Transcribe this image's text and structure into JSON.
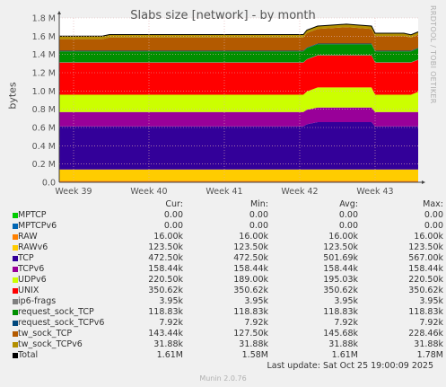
{
  "title": "Slabs size [network] - by month",
  "side_label": "RRDTOOL / TOBI OETIKER",
  "footer": "Munin 2.0.76",
  "last_update": "Last update: Sat Oct 25 19:00:09 2025",
  "legend_headers": {
    "cur": "Cur:",
    "min": "Min:",
    "avg": "Avg:",
    "max": "Max:"
  },
  "legend": [
    {
      "name": "MPTCP",
      "color": "#00cc00",
      "cur": "0.00",
      "min": "0.00",
      "avg": "0.00",
      "max": "0.00"
    },
    {
      "name": "MPTCPv6",
      "color": "#0066b3",
      "cur": "0.00",
      "min": "0.00",
      "avg": "0.00",
      "max": "0.00"
    },
    {
      "name": "RAW",
      "color": "#ff8000",
      "cur": "16.00k",
      "min": "16.00k",
      "avg": "16.00k",
      "max": "16.00k"
    },
    {
      "name": "RAWv6",
      "color": "#ffcc00",
      "cur": "123.50k",
      "min": "123.50k",
      "avg": "123.50k",
      "max": "123.50k"
    },
    {
      "name": "TCP",
      "color": "#330099",
      "cur": "472.50k",
      "min": "472.50k",
      "avg": "501.69k",
      "max": "567.00k"
    },
    {
      "name": "TCPv6",
      "color": "#990099",
      "cur": "158.44k",
      "min": "158.44k",
      "avg": "158.44k",
      "max": "158.44k"
    },
    {
      "name": "UDPv6",
      "color": "#ccff00",
      "cur": "220.50k",
      "min": "189.00k",
      "avg": "195.03k",
      "max": "220.50k"
    },
    {
      "name": "UNIX",
      "color": "#ff0000",
      "cur": "350.62k",
      "min": "350.62k",
      "avg": "350.62k",
      "max": "350.62k"
    },
    {
      "name": "ip6-frags",
      "color": "#808080",
      "cur": "3.95k",
      "min": "3.95k",
      "avg": "3.95k",
      "max": "3.95k"
    },
    {
      "name": "request_sock_TCP",
      "color": "#008f00",
      "cur": "118.83k",
      "min": "118.83k",
      "avg": "118.83k",
      "max": "118.83k"
    },
    {
      "name": "request_sock_TCPv6",
      "color": "#00487d",
      "cur": "7.92k",
      "min": "7.92k",
      "avg": "7.92k",
      "max": "7.92k"
    },
    {
      "name": "tw_sock_TCP",
      "color": "#b35a00",
      "cur": "143.44k",
      "min": "127.50k",
      "avg": "145.68k",
      "max": "228.46k"
    },
    {
      "name": "tw_sock_TCPv6",
      "color": "#b38f00",
      "cur": "31.88k",
      "min": "31.88k",
      "avg": "31.88k",
      "max": "31.88k"
    },
    {
      "name": "Total",
      "color": "#000000",
      "cur": "1.61M",
      "min": "1.58M",
      "avg": "1.61M",
      "max": "1.78M"
    }
  ],
  "chart_data": {
    "type": "area",
    "ylabel": "bytes",
    "ylim": [
      0,
      1800000
    ],
    "yticks": [
      "0.0",
      "0.2 M",
      "0.4 M",
      "0.6 M",
      "0.8 M",
      "1.0 M",
      "1.2 M",
      "1.4 M",
      "1.6 M",
      "1.8 M"
    ],
    "ytick_values": [
      0,
      200000,
      400000,
      600000,
      800000,
      1000000,
      1200000,
      1400000,
      1600000,
      1800000
    ],
    "xticks": [
      "Week 39",
      "Week 40",
      "Week 41",
      "Week 42",
      "Week 43"
    ],
    "x": [
      0,
      0.12,
      0.14,
      0.68,
      0.69,
      0.72,
      0.74,
      0.8,
      0.82,
      0.87,
      0.88,
      0.94,
      0.96,
      0.98,
      1.0
    ],
    "stacked": true,
    "grid": true,
    "series": [
      {
        "name": "MPTCP",
        "color": "#00cc00",
        "values": [
          0,
          0,
          0,
          0,
          0,
          0,
          0,
          0,
          0,
          0,
          0,
          0,
          0,
          0,
          0
        ]
      },
      {
        "name": "MPTCPv6",
        "color": "#0066b3",
        "values": [
          0,
          0,
          0,
          0,
          0,
          0,
          0,
          0,
          0,
          0,
          0,
          0,
          0,
          0,
          0
        ]
      },
      {
        "name": "RAW",
        "color": "#ff8000",
        "values": [
          16000,
          16000,
          16000,
          16000,
          16000,
          16000,
          16000,
          16000,
          16000,
          16000,
          16000,
          16000,
          16000,
          16000,
          16000
        ]
      },
      {
        "name": "RAWv6",
        "color": "#ffcc00",
        "values": [
          123500,
          123500,
          123500,
          123500,
          123500,
          123500,
          123500,
          123500,
          123500,
          123500,
          123500,
          123500,
          123500,
          123500,
          123500
        ]
      },
      {
        "name": "TCP",
        "color": "#330099",
        "values": [
          472500,
          472500,
          472500,
          472500,
          496000,
          520000,
          520000,
          520000,
          520000,
          520000,
          472500,
          472500,
          472500,
          472500,
          472500
        ]
      },
      {
        "name": "TCPv6",
        "color": "#990099",
        "values": [
          158440,
          158440,
          158440,
          158440,
          158440,
          158440,
          158440,
          158440,
          158440,
          158440,
          158440,
          158440,
          158440,
          158440,
          158440
        ]
      },
      {
        "name": "UDPv6",
        "color": "#ccff00",
        "values": [
          189000,
          189000,
          189000,
          189000,
          200000,
          220500,
          220500,
          220500,
          220500,
          220500,
          189000,
          189000,
          189000,
          189000,
          220500
        ]
      },
      {
        "name": "UNIX",
        "color": "#ff0000",
        "values": [
          350620,
          350620,
          350620,
          350620,
          350620,
          350620,
          350620,
          350620,
          350620,
          350620,
          350620,
          350620,
          350620,
          350620,
          350620
        ]
      },
      {
        "name": "ip6-frags",
        "color": "#808080",
        "values": [
          3950,
          3950,
          3950,
          3950,
          3950,
          3950,
          3950,
          3950,
          3950,
          3950,
          3950,
          3950,
          3950,
          3950,
          3950
        ]
      },
      {
        "name": "request_sock_TCP",
        "color": "#008f00",
        "values": [
          118830,
          118830,
          118830,
          118830,
          118830,
          118830,
          118830,
          118830,
          118830,
          118830,
          118830,
          118830,
          118830,
          118830,
          118830
        ]
      },
      {
        "name": "request_sock_TCPv6",
        "color": "#00487d",
        "values": [
          7920,
          7920,
          7920,
          7920,
          7920,
          7920,
          7920,
          7920,
          7920,
          7920,
          7920,
          7920,
          7920,
          7920,
          7920
        ]
      },
      {
        "name": "tw_sock_TCP",
        "color": "#b35a00",
        "values": [
          127500,
          127500,
          145000,
          145000,
          160000,
          160000,
          165000,
          180000,
          175000,
          160000,
          160000,
          160000,
          160000,
          143440,
          143440
        ]
      },
      {
        "name": "tw_sock_TCPv6",
        "color": "#b38f00",
        "values": [
          31880,
          31880,
          31880,
          31880,
          31880,
          31880,
          31880,
          31880,
          31880,
          31880,
          31880,
          31880,
          31880,
          31880,
          31880
        ]
      }
    ]
  }
}
